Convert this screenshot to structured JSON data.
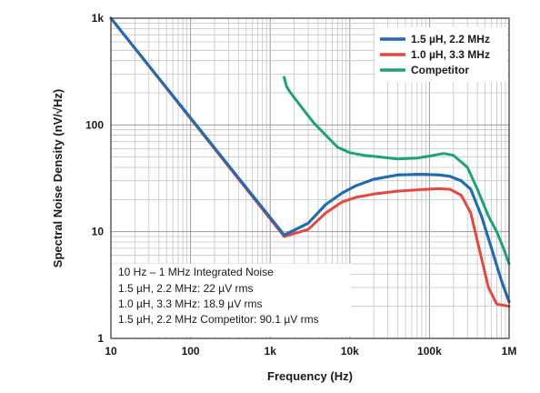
{
  "chart_data": {
    "type": "line",
    "xlabel": "Frequency (Hz)",
    "ylabel": "Spectral Noise Density (nV/√Hz)",
    "xscale": "log",
    "yscale": "log",
    "xlim": [
      10,
      1000000
    ],
    "ylim": [
      1,
      1000
    ],
    "x_ticks": [
      10,
      100,
      1000,
      10000,
      100000,
      1000000
    ],
    "x_tick_labels": [
      "10",
      "100",
      "1k",
      "10k",
      "100k",
      "1M"
    ],
    "y_ticks": [
      1,
      10,
      100,
      1000
    ],
    "y_tick_labels": [
      "1",
      "10",
      "100",
      "1k"
    ],
    "grid": true,
    "legend_position": "top-right",
    "series": [
      {
        "name": "1.5 µH, 2.2 MHz",
        "color": "#1f6bb5",
        "points": [
          [
            10,
            1000
          ],
          [
            1500,
            9.3
          ],
          [
            3000,
            12
          ],
          [
            5000,
            18
          ],
          [
            8000,
            23
          ],
          [
            12000,
            27
          ],
          [
            20000,
            31
          ],
          [
            40000,
            34
          ],
          [
            80000,
            34.5
          ],
          [
            130000,
            34
          ],
          [
            180000,
            33
          ],
          [
            250000,
            30
          ],
          [
            330000,
            25
          ],
          [
            450000,
            14
          ],
          [
            600000,
            7
          ],
          [
            800000,
            3.5
          ],
          [
            1000000,
            2.2
          ]
        ]
      },
      {
        "name": "1.0 µH, 3.3 MHz",
        "color": "#e8473d",
        "points": [
          [
            10,
            1000
          ],
          [
            1500,
            9.0
          ],
          [
            3000,
            10.5
          ],
          [
            5000,
            15
          ],
          [
            8000,
            19
          ],
          [
            12000,
            21
          ],
          [
            20000,
            22.5
          ],
          [
            40000,
            24
          ],
          [
            80000,
            24.8
          ],
          [
            130000,
            25.3
          ],
          [
            180000,
            25
          ],
          [
            250000,
            22
          ],
          [
            330000,
            15
          ],
          [
            420000,
            7
          ],
          [
            550000,
            3
          ],
          [
            700000,
            2.1
          ],
          [
            1000000,
            2.0
          ]
        ]
      },
      {
        "name": "Competitor",
        "color": "#1aa37a",
        "points": [
          [
            1500,
            280
          ],
          [
            1600,
            230
          ],
          [
            1800,
            200
          ],
          [
            2500,
            145
          ],
          [
            3500,
            105
          ],
          [
            5000,
            80
          ],
          [
            7000,
            62
          ],
          [
            10000,
            55
          ],
          [
            15000,
            52
          ],
          [
            25000,
            50
          ],
          [
            40000,
            48
          ],
          [
            70000,
            49
          ],
          [
            100000,
            51
          ],
          [
            150000,
            54
          ],
          [
            200000,
            52
          ],
          [
            300000,
            40
          ],
          [
            400000,
            25
          ],
          [
            550000,
            14
          ],
          [
            700000,
            10
          ],
          [
            850000,
            7
          ],
          [
            1000000,
            5
          ]
        ]
      }
    ],
    "annotation": {
      "title": "10 Hz – 1 MHz Integrated Noise",
      "lines": [
        "1.5 µH, 2.2 MHz: 22 µV rms",
        "1.0 µH, 3.3 MHz: 18.9 µV rms",
        "1.5 µH, 2.2 MHz Competitor: 90.1 µV rms"
      ]
    }
  }
}
